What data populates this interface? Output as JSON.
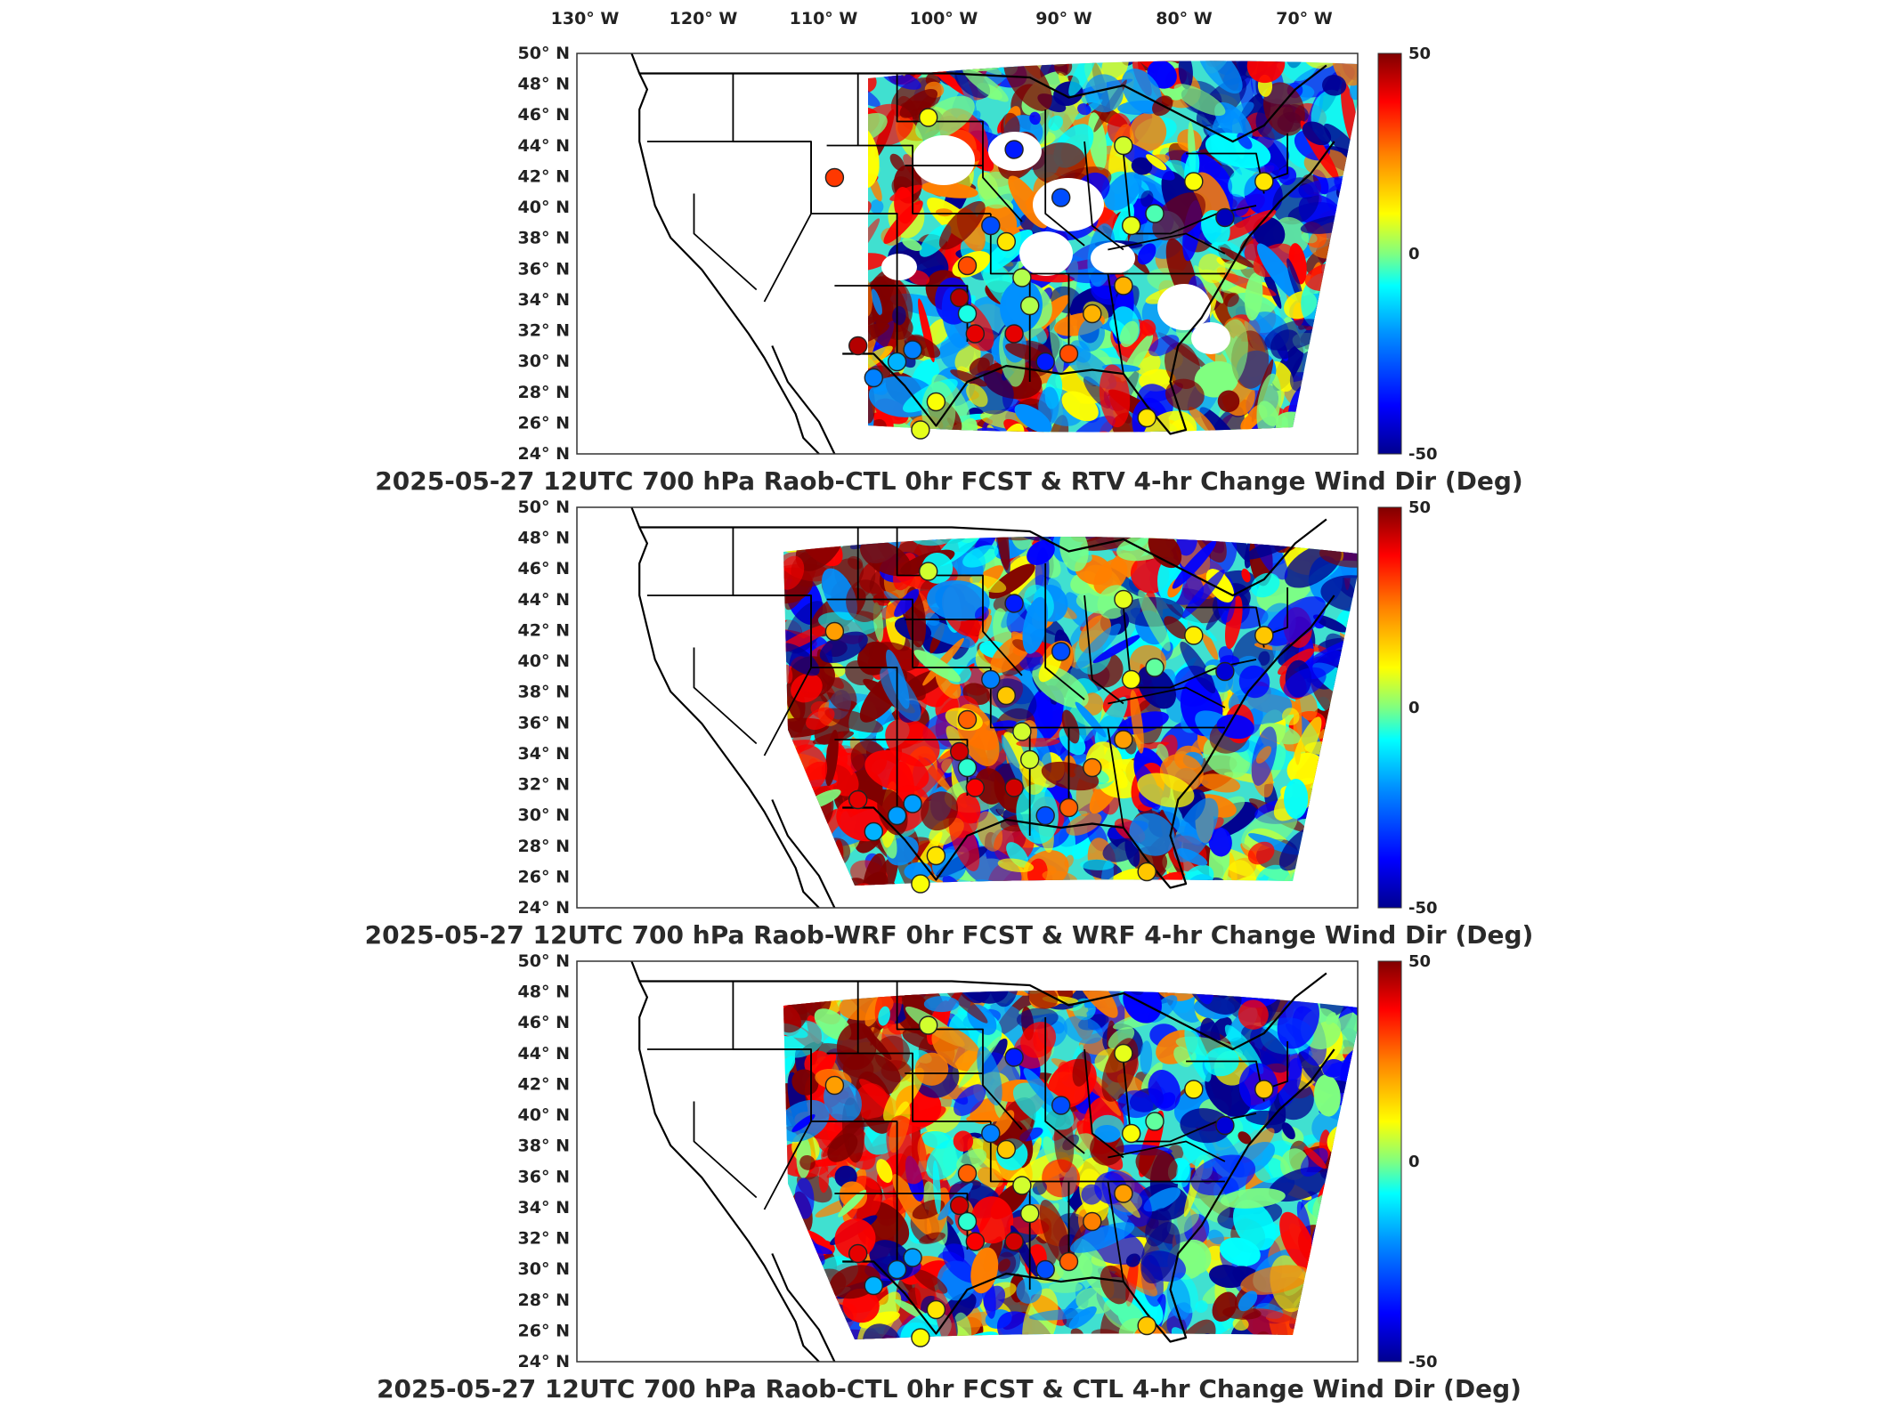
{
  "lon_labels": [
    "130° W",
    "120° W",
    "110° W",
    "100° W",
    "90° W",
    "80° W",
    "70° W"
  ],
  "lat_labels": [
    "50° N",
    "48° N",
    "46° N",
    "44° N",
    "42° N",
    "40° N",
    "38° N",
    "36° N",
    "34° N",
    "32° N",
    "30° N",
    "28° N",
    "26° N",
    "24° N"
  ],
  "colorbar": {
    "max_label": "50",
    "mid_label": "0",
    "min_label": "-50",
    "colors": [
      "#00008f",
      "#0000ff",
      "#0080ff",
      "#00ffff",
      "#80ff80",
      "#ffff00",
      "#ff8000",
      "#ff0000",
      "#800000"
    ]
  },
  "panels": [
    {
      "title": "2025-05-27 12UTC 700 hPa Raob-CTL 0hr FCST & RTV 4-hr Change Wind Dir (Deg)"
    },
    {
      "title": "2025-05-27 12UTC 700 hPa Raob-WRF 0hr FCST & WRF 4-hr Change Wind Dir (Deg)"
    },
    {
      "title": "2025-05-27 12UTC 700 hPa Raob-CTL 0hr FCST & CTL 4-hr Change Wind Dir (Deg)"
    }
  ],
  "stations": {
    "value_units": "Deg",
    "panel_values": [
      [
        32,
        12,
        -35,
        8,
        -30,
        15,
        -10,
        -25,
        12,
        -30,
        30,
        45,
        40,
        5,
        20,
        40,
        5,
        30,
        -35,
        -20,
        45,
        -25,
        10,
        15,
        -5,
        -45,
        10,
        12,
        15,
        20
      ],
      [
        22,
        8,
        -35,
        10,
        -30,
        18,
        -8,
        -22,
        15,
        -25,
        28,
        42,
        38,
        8,
        25,
        42,
        8,
        28,
        -30,
        -22,
        40,
        -20,
        12,
        18,
        -3,
        -42,
        12,
        14,
        18,
        22
      ],
      [
        22,
        8,
        -35,
        10,
        -30,
        18,
        -8,
        -22,
        15,
        -25,
        28,
        42,
        38,
        8,
        25,
        42,
        8,
        28,
        -30,
        -22,
        40,
        -20,
        12,
        18,
        -3,
        -42,
        12,
        14,
        18,
        22
      ]
    ]
  }
}
